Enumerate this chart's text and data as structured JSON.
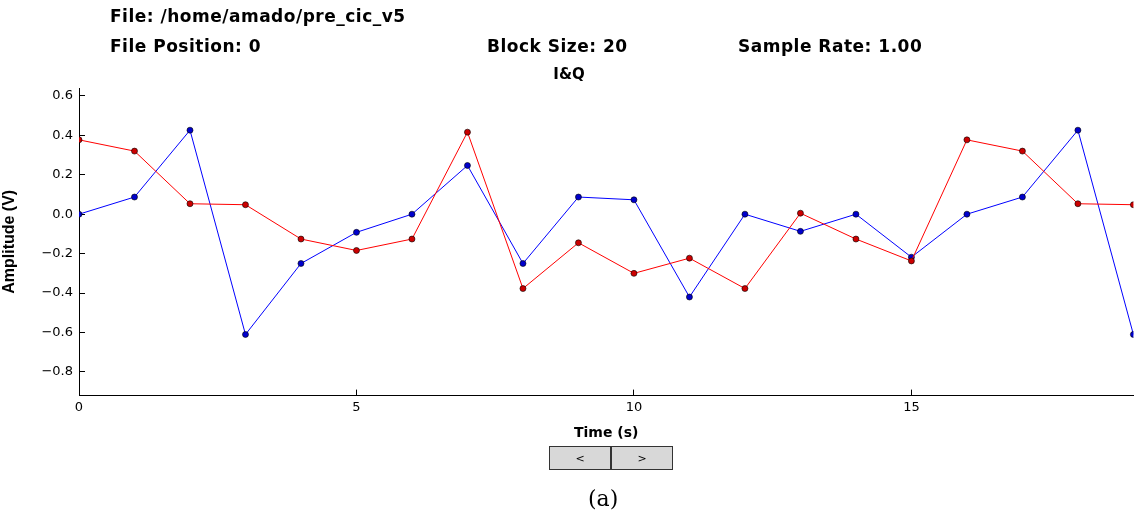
{
  "chart_data": {
    "type": "line",
    "title": "I&Q",
    "xlabel": "Time (s)",
    "ylabel": "Amplitude (V)",
    "annotations": [
      "File: /home/amado/pre_cic_v5",
      "File Position: 0",
      "Block Size: 20",
      "Sample Rate: 1.00",
      "(a)",
      "<",
      ">"
    ],
    "x": [
      0,
      1,
      2,
      3,
      4,
      5,
      6,
      7,
      8,
      9,
      10,
      11,
      12,
      13,
      14,
      15,
      16,
      17,
      18,
      19
    ],
    "series": [
      {
        "color": "#ff0000",
        "values": [
          0.377,
          0.32,
          0.053,
          0.048,
          -0.126,
          -0.184,
          -0.126,
          0.416,
          -0.377,
          -0.145,
          -0.3,
          -0.223,
          -0.377,
          0.005,
          -0.126,
          -0.237,
          0.377,
          0.32,
          0.053,
          0.048
        ]
      },
      {
        "color": "#0000ff",
        "values": [
          0,
          0.087,
          0.426,
          -0.61,
          -0.25,
          -0.092,
          0,
          0.247,
          -0.25,
          0.087,
          0.073,
          -0.42,
          0,
          -0.087,
          0,
          -0.218,
          0,
          0.087,
          0.426,
          -0.61
        ]
      }
    ],
    "xlim": [
      0,
      19
    ],
    "xticks": [
      0,
      5,
      10,
      15
    ],
    "ylim": [
      -0.92,
      0.64
    ],
    "yticks": [
      {
        "value": -0.8,
        "label": "−0.8"
      },
      {
        "value": -0.6,
        "label": "−0.6"
      },
      {
        "value": -0.4,
        "label": "−0.4"
      },
      {
        "value": -0.2,
        "label": "−0.2"
      },
      {
        "value": 0,
        "label": "0.0"
      },
      {
        "value": 0.2,
        "label": "0.2"
      },
      {
        "value": 0.4,
        "label": "0.4"
      },
      {
        "value": 0.6,
        "label": "0.6"
      }
    ],
    "grid": false,
    "legend": false,
    "marker": "circle",
    "line_style": "solid"
  }
}
